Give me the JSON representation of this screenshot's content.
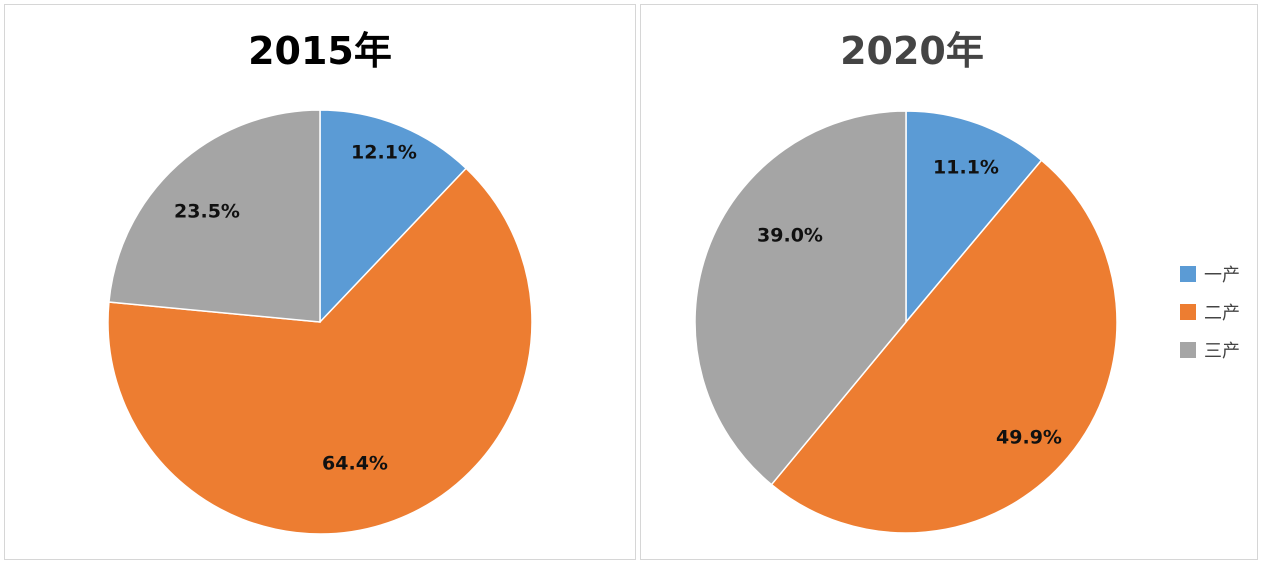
{
  "chart_data": [
    {
      "type": "pie",
      "title": "2015年",
      "title_color": "#000000",
      "categories": [
        "一产",
        "二产",
        "三产"
      ],
      "values": [
        12.1,
        64.4,
        23.5
      ],
      "labels": [
        "12.1%",
        "64.4%",
        "23.5%"
      ]
    },
    {
      "type": "pie",
      "title": "2020年",
      "title_color": "#444444",
      "categories": [
        "一产",
        "二产",
        "三产"
      ],
      "values": [
        11.1,
        49.9,
        39.0
      ],
      "labels": [
        "11.1%",
        "49.9%",
        "39.0%"
      ],
      "legend": [
        "一产",
        "二产",
        "三产"
      ],
      "legend_placement": "right"
    }
  ],
  "colors": {
    "一产": "#5b9bd5",
    "二产": "#ed7d31",
    "三产": "#a5a5a5"
  }
}
